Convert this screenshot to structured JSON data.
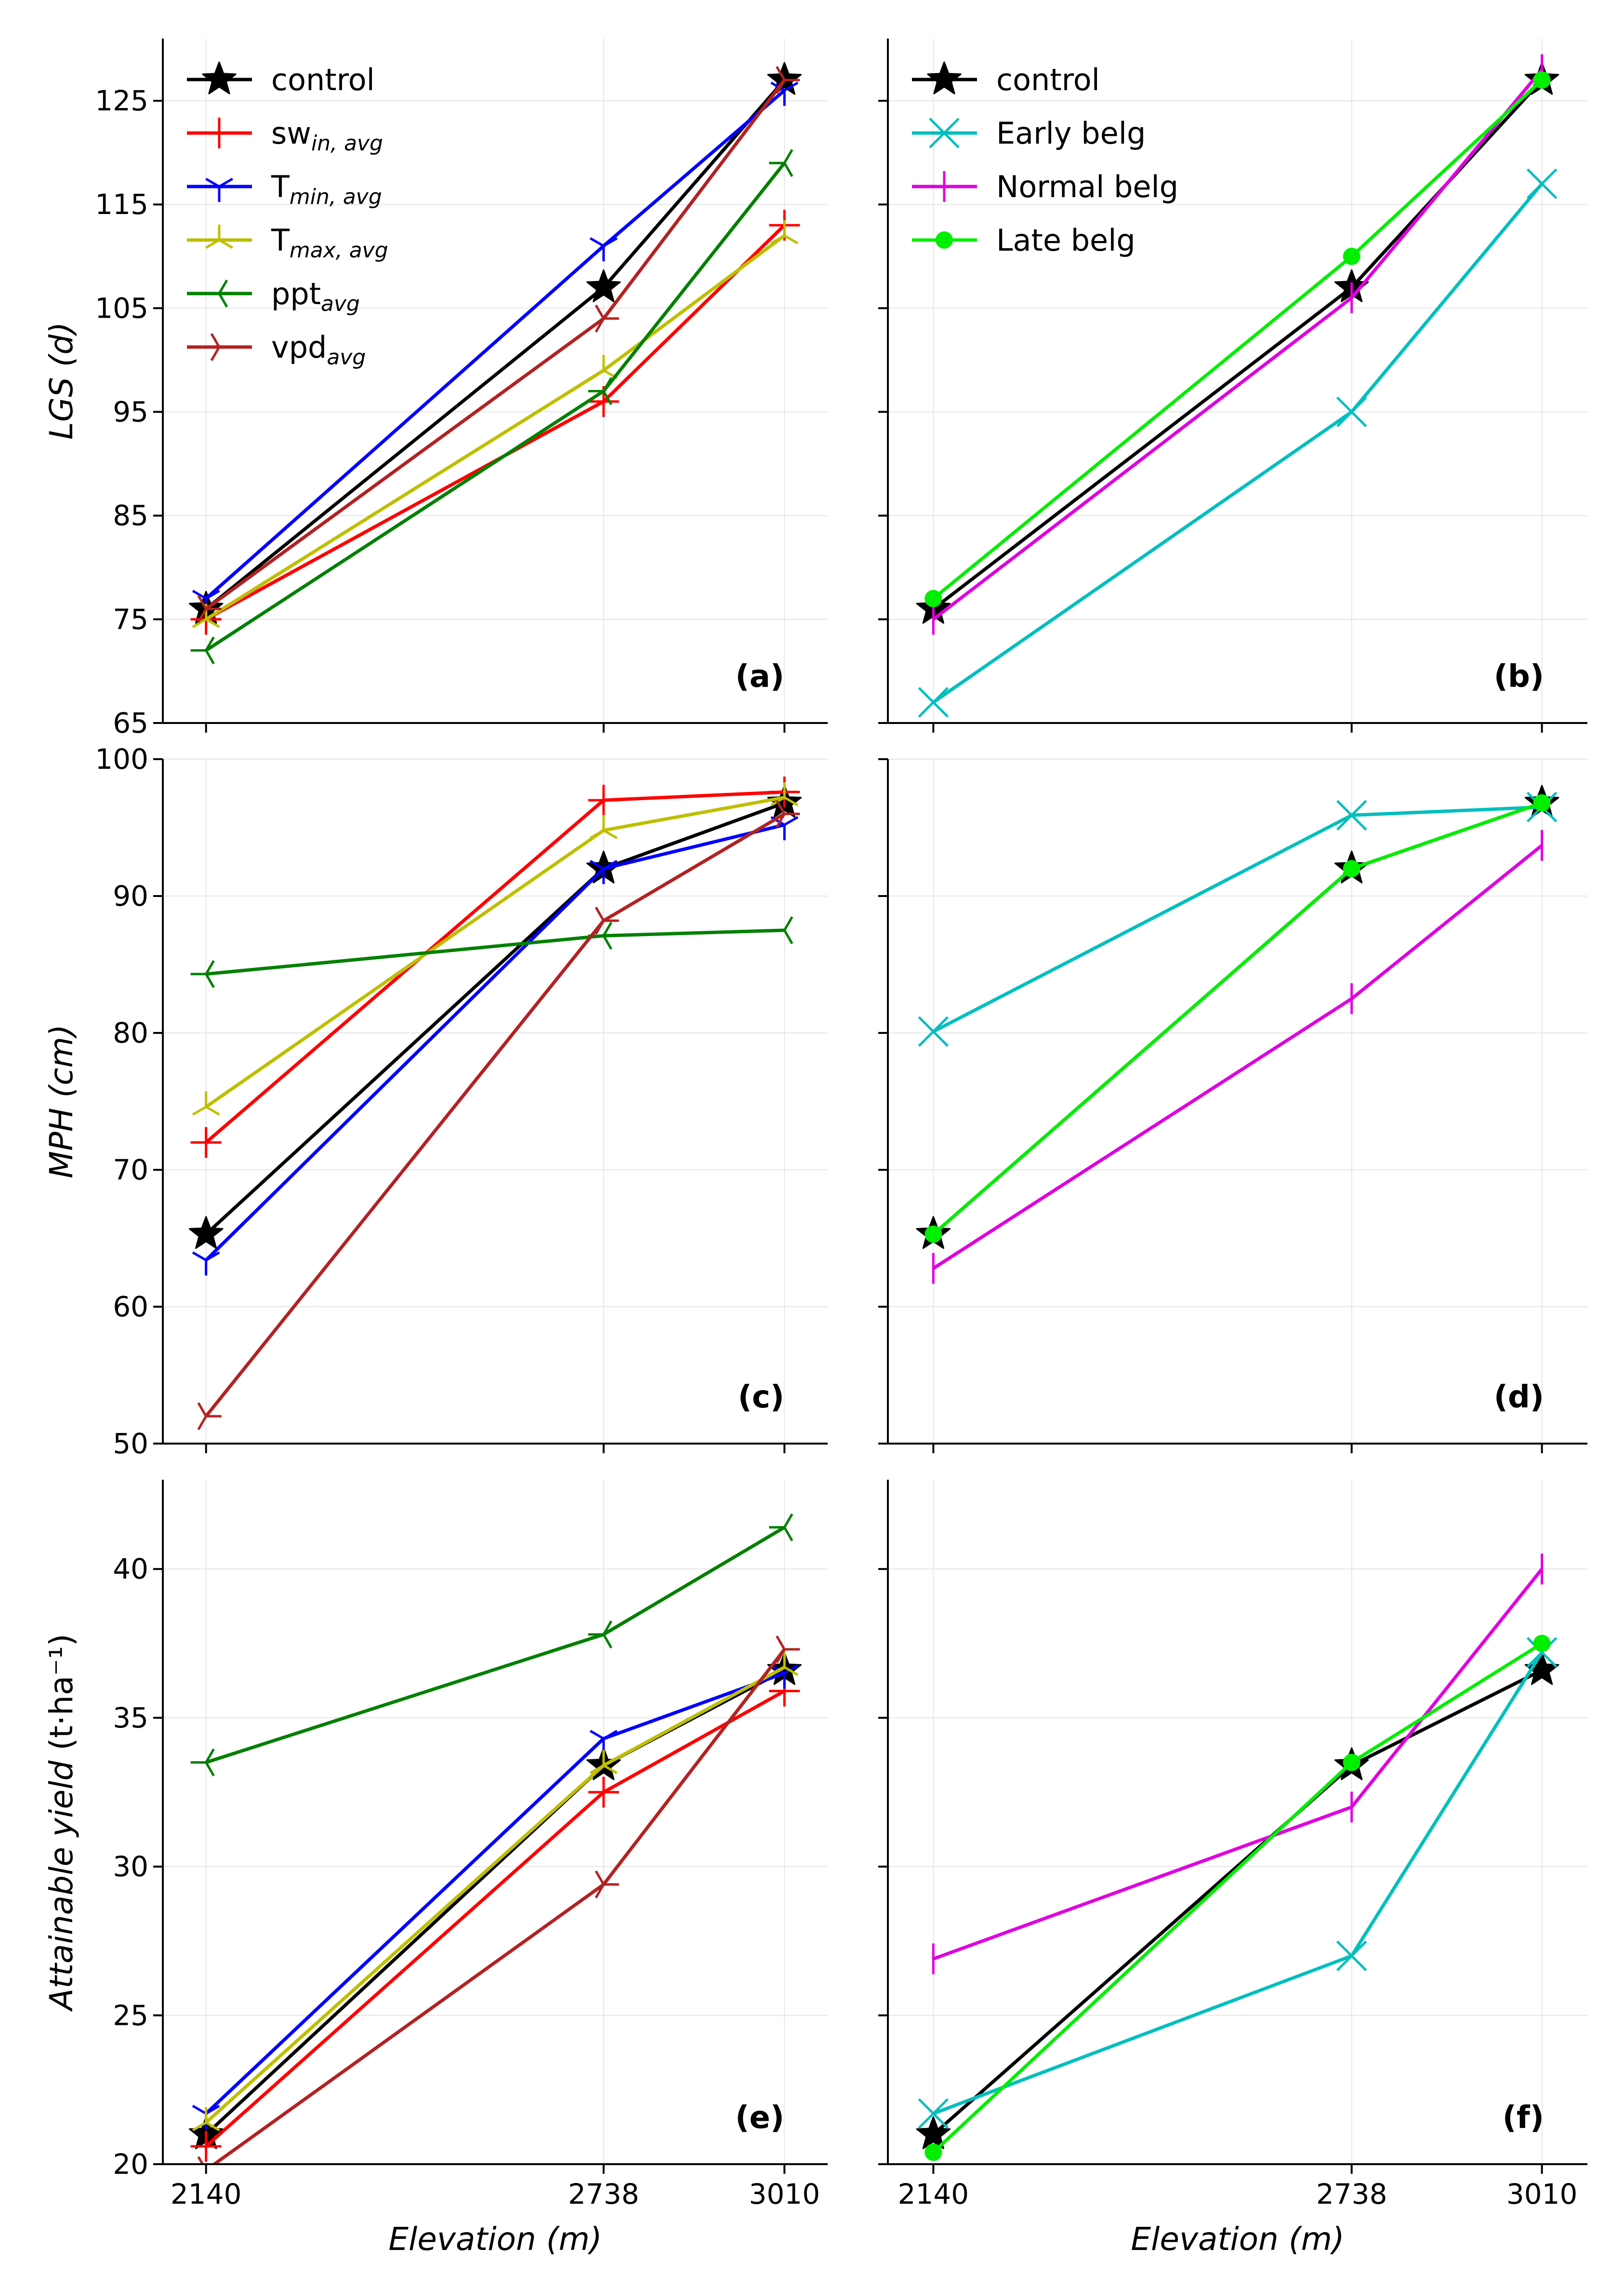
{
  "chart_data": {
    "type": "line",
    "x": [
      2140,
      2738,
      3010
    ],
    "x_tick_labels": [
      "2140",
      "2738",
      "3010"
    ],
    "xlabel_main": "Elevation",
    "xlabel_unit": "(m)",
    "rows": [
      {
        "ylabel_main": "LGS",
        "ylabel_unit": "(d)",
        "ylim": [
          65,
          131
        ],
        "yticks": [
          65,
          75,
          85,
          95,
          105,
          115,
          125
        ]
      },
      {
        "ylabel_main": "MPH",
        "ylabel_unit": "(cm)",
        "ylim": [
          50,
          100
        ],
        "yticks": [
          50,
          60,
          70,
          80,
          90,
          100
        ]
      },
      {
        "ylabel_main": "Attainable yield",
        "ylabel_unit": "(t·ha⁻¹)",
        "ylim": [
          20,
          43
        ],
        "yticks": [
          20,
          25,
          30,
          35,
          40
        ]
      }
    ],
    "legend_left": [
      {
        "key": "control",
        "main": "control",
        "sub": ""
      },
      {
        "key": "sw",
        "main": "sw",
        "sub": "in, avg"
      },
      {
        "key": "tmin",
        "main": "T",
        "sub": "min, avg"
      },
      {
        "key": "tmax",
        "main": "T",
        "sub": "max, avg"
      },
      {
        "key": "ppt",
        "main": "ppt",
        "sub": "avg"
      },
      {
        "key": "vpd",
        "main": "vpd",
        "sub": "avg"
      }
    ],
    "legend_right": [
      {
        "key": "control",
        "main": "control",
        "sub": ""
      },
      {
        "key": "early",
        "main": "Early belg",
        "sub": ""
      },
      {
        "key": "normal",
        "main": "Normal belg",
        "sub": ""
      },
      {
        "key": "late",
        "main": "Late belg",
        "sub": ""
      }
    ],
    "styles": {
      "control": {
        "color": "#000000",
        "marker": "star"
      },
      "sw": {
        "color": "#ff0000",
        "marker": "plus"
      },
      "tmin": {
        "color": "#0000ff",
        "marker": "tri_down"
      },
      "tmax": {
        "color": "#bfbf00",
        "marker": "tri_up"
      },
      "ppt": {
        "color": "#008000",
        "marker": "tri_left"
      },
      "vpd": {
        "color": "#b22222",
        "marker": "tri_right"
      },
      "early": {
        "color": "#00bfbf",
        "marker": "x"
      },
      "normal": {
        "color": "#df00df",
        "marker": "vline"
      },
      "late": {
        "color": "#00ee00",
        "marker": "circle"
      }
    },
    "panels": [
      {
        "label": "(a)",
        "row": 0,
        "col": 0,
        "series": [
          {
            "key": "control",
            "values": [
              76,
              107,
              127
            ]
          },
          {
            "key": "sw",
            "values": [
              75,
              96,
              113
            ]
          },
          {
            "key": "tmin",
            "values": [
              77,
              111,
              126
            ]
          },
          {
            "key": "tmax",
            "values": [
              75,
              99,
              112
            ]
          },
          {
            "key": "ppt",
            "values": [
              72,
              97,
              119
            ]
          },
          {
            "key": "vpd",
            "values": [
              76,
              104,
              127
            ]
          }
        ]
      },
      {
        "label": "(b)",
        "row": 0,
        "col": 1,
        "series": [
          {
            "key": "control",
            "values": [
              76,
              107,
              127
            ]
          },
          {
            "key": "early",
            "values": [
              67,
              95,
              117
            ]
          },
          {
            "key": "normal",
            "values": [
              75,
              106,
              128
            ]
          },
          {
            "key": "late",
            "values": [
              77,
              110,
              127
            ]
          }
        ]
      },
      {
        "label": "(c)",
        "row": 1,
        "col": 0,
        "series": [
          {
            "key": "control",
            "values": [
              65.3,
              92,
              96.8
            ]
          },
          {
            "key": "sw",
            "values": [
              72,
              97,
              97.6
            ]
          },
          {
            "key": "tmin",
            "values": [
              63.4,
              92,
              95.2
            ]
          },
          {
            "key": "tmax",
            "values": [
              74.6,
              94.8,
              97.2
            ]
          },
          {
            "key": "ppt",
            "values": [
              84.3,
              87.1,
              87.5
            ]
          },
          {
            "key": "vpd",
            "values": [
              52,
              88.2,
              96
            ]
          }
        ]
      },
      {
        "label": "(d)",
        "row": 1,
        "col": 1,
        "series": [
          {
            "key": "control",
            "values": [
              65.3,
              92,
              96.8
            ]
          },
          {
            "key": "early",
            "values": [
              80.1,
              95.9,
              96.5
            ]
          },
          {
            "key": "normal",
            "values": [
              62.8,
              82.5,
              93.7
            ]
          },
          {
            "key": "late",
            "values": [
              65.3,
              92,
              96.8
            ]
          }
        ]
      },
      {
        "label": "(e)",
        "row": 2,
        "col": 0,
        "series": [
          {
            "key": "control",
            "values": [
              21,
              33.4,
              36.6
            ]
          },
          {
            "key": "sw",
            "values": [
              20.6,
              32.5,
              35.9
            ]
          },
          {
            "key": "tmin",
            "values": [
              21.7,
              34.3,
              36.5
            ]
          },
          {
            "key": "tmax",
            "values": [
              21.4,
              33.4,
              36.7
            ]
          },
          {
            "key": "ppt",
            "values": [
              33.5,
              37.8,
              41.4
            ]
          },
          {
            "key": "vpd",
            "values": [
              19.8,
              29.4,
              37.3
            ]
          }
        ]
      },
      {
        "label": "(f)",
        "row": 2,
        "col": 1,
        "series": [
          {
            "key": "control",
            "values": [
              21,
              33.4,
              36.6
            ]
          },
          {
            "key": "early",
            "values": [
              21.7,
              27,
              37.2
            ]
          },
          {
            "key": "normal",
            "values": [
              26.9,
              32,
              40
            ]
          },
          {
            "key": "late",
            "values": [
              20.4,
              33.5,
              37.5
            ]
          }
        ]
      }
    ]
  }
}
